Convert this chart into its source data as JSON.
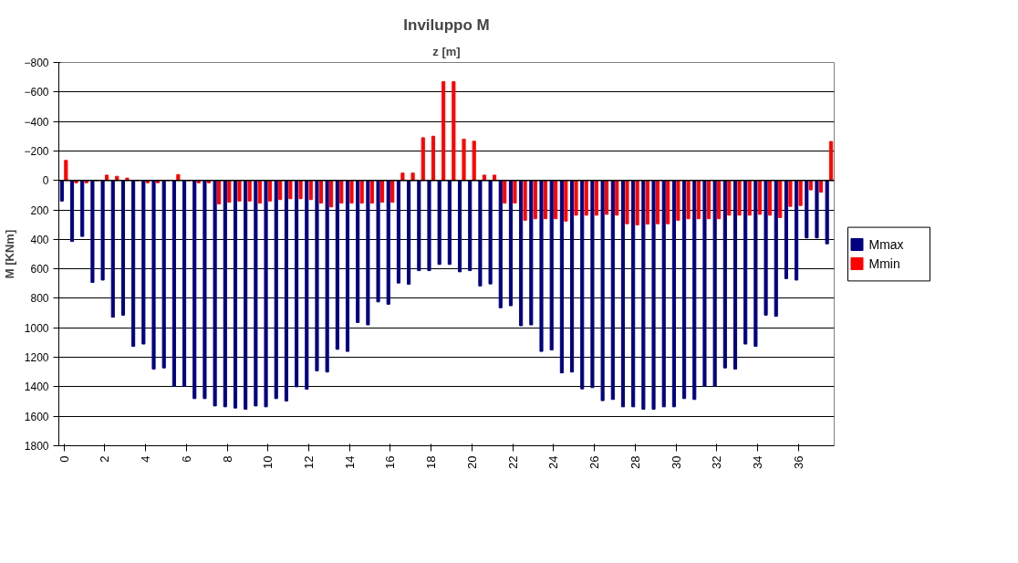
{
  "chart_data": {
    "type": "bar",
    "title": "Inviluppo M",
    "xlabel": "z [m]",
    "ylabel": "M [KNm]",
    "categories": [
      "0",
      null,
      null,
      null,
      "2",
      null,
      null,
      null,
      "4",
      null,
      null,
      null,
      "6",
      null,
      null,
      null,
      "8",
      null,
      null,
      null,
      "10",
      null,
      null,
      null,
      "12",
      null,
      null,
      null,
      "14",
      null,
      null,
      null,
      "16",
      null,
      null,
      null,
      "18",
      null,
      null,
      null,
      "20",
      null,
      null,
      null,
      "22",
      null,
      null,
      null,
      "24",
      null,
      null,
      null,
      "26",
      null,
      null,
      null,
      "28",
      null,
      null,
      null,
      "30",
      null,
      null,
      null,
      "32",
      null,
      null,
      null,
      "34",
      null,
      null,
      null,
      "36",
      null,
      null,
      null
    ],
    "series": [
      {
        "name": "Mmax",
        "color": "#000080",
        "values": [
          140,
          414,
          380,
          692,
          676,
          928,
          914,
          1126,
          1110,
          1280,
          1272,
          1396,
          1396,
          1480,
          1480,
          1530,
          1536,
          1544,
          1552,
          1530,
          1536,
          1480,
          1496,
          1400,
          1416,
          1292,
          1300,
          1146,
          1160,
          964,
          980,
          824,
          840,
          696,
          704,
          612,
          612,
          570,
          570,
          620,
          612,
          716,
          702,
          864,
          850,
          986,
          980,
          1160,
          1150,
          1306,
          1300,
          1414,
          1406,
          1494,
          1486,
          1536,
          1536,
          1552,
          1552,
          1536,
          1536,
          1480,
          1486,
          1396,
          1396,
          1272,
          1280,
          1110,
          1126,
          914,
          922,
          666,
          676,
          390,
          390,
          430
        ]
      },
      {
        "name": "Mmin",
        "color": "#ff0000",
        "values": [
          -136,
          16,
          16,
          0,
          -36,
          -28,
          -16,
          0,
          16,
          16,
          0,
          -40,
          0,
          16,
          16,
          160,
          148,
          140,
          140,
          154,
          140,
          130,
          124,
          124,
          130,
          154,
          180,
          154,
          154,
          154,
          154,
          148,
          148,
          -50,
          -50,
          -290,
          -300,
          -670,
          -670,
          -280,
          -266,
          -36,
          -36,
          154,
          154,
          270,
          260,
          260,
          260,
          276,
          236,
          236,
          236,
          230,
          236,
          294,
          302,
          296,
          294,
          294,
          270,
          260,
          260,
          260,
          260,
          236,
          236,
          236,
          230,
          236,
          252,
          176,
          170,
          64,
          80,
          -264
        ]
      }
    ],
    "ylim": [
      1800,
      -800
    ],
    "yticks": [
      -800,
      -600,
      -400,
      -200,
      0,
      200,
      400,
      600,
      800,
      1000,
      1200,
      1400,
      1600,
      1800
    ],
    "grid": "y",
    "legend": "right"
  }
}
